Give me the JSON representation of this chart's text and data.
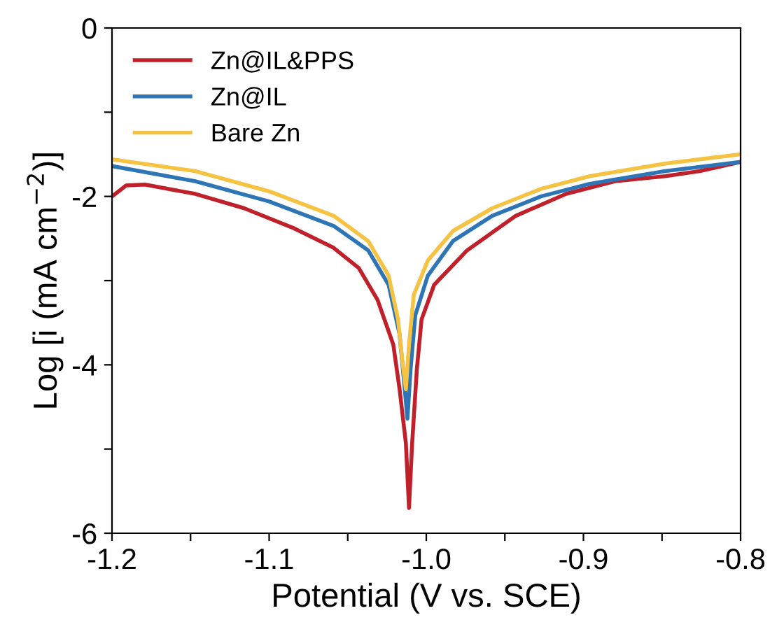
{
  "chart_data": {
    "type": "line",
    "xlabel": "Potential (V vs. SCE)",
    "ylabel": "Log [i (mA cm$^{−2}$)]",
    "xlim": [
      -1.2,
      -0.8
    ],
    "ylim": [
      -6,
      0
    ],
    "xticks": [
      {
        "value": -1.2,
        "label": "-1.2"
      },
      {
        "value": -1.15,
        "label": null
      },
      {
        "value": -1.1,
        "label": "-1.1"
      },
      {
        "value": -1.05,
        "label": null
      },
      {
        "value": -1.0,
        "label": "-1.0"
      },
      {
        "value": -0.95,
        "label": null
      },
      {
        "value": -0.9,
        "label": "-0.9"
      },
      {
        "value": -0.85,
        "label": null
      },
      {
        "value": -0.8,
        "label": "-0.8"
      }
    ],
    "yticks": [
      {
        "value": -6,
        "label": "-6"
      },
      {
        "value": -5,
        "label": null
      },
      {
        "value": -4,
        "label": "-4"
      },
      {
        "value": -3,
        "label": null
      },
      {
        "value": -2,
        "label": "-2"
      },
      {
        "value": -1,
        "label": null
      },
      {
        "value": 0,
        "label": "0"
      }
    ],
    "grid": false,
    "legend": "top left",
    "line_style": "solid",
    "marker": "none",
    "series": [
      {
        "name": "Zn@IL&PPS",
        "color": "#c0202a",
        "x": [
          -1.2,
          -1.191,
          -1.179,
          -1.147,
          -1.116,
          -1.084,
          -1.059,
          -1.043,
          -1.031,
          -1.021,
          -1.017,
          -1.013,
          -1.011,
          -1.009,
          -1.006,
          -1.003,
          -0.995,
          -0.974,
          -0.943,
          -0.911,
          -0.88,
          -0.848,
          -0.826,
          -0.8
        ],
        "values": [
          -2.0,
          -1.87,
          -1.86,
          -1.97,
          -2.14,
          -2.38,
          -2.61,
          -2.85,
          -3.23,
          -3.76,
          -4.29,
          -4.93,
          -5.7,
          -4.93,
          -4.05,
          -3.46,
          -3.05,
          -2.64,
          -2.23,
          -1.97,
          -1.82,
          -1.76,
          -1.7,
          -1.59
        ]
      },
      {
        "name": "Zn@IL",
        "color": "#2e75b6",
        "x": [
          -1.2,
          -1.147,
          -1.1,
          -1.059,
          -1.037,
          -1.024,
          -1.017,
          -1.014,
          -1.012,
          -1.01,
          -1.007,
          -0.999,
          -0.983,
          -0.958,
          -0.927,
          -0.896,
          -0.848,
          -0.8
        ],
        "values": [
          -1.64,
          -1.82,
          -2.06,
          -2.35,
          -2.64,
          -3.05,
          -3.64,
          -4.23,
          -4.64,
          -4.05,
          -3.41,
          -2.94,
          -2.53,
          -2.23,
          -2.0,
          -1.85,
          -1.7,
          -1.59
        ]
      },
      {
        "name": "Bare Zn",
        "color": "#f5c242",
        "x": [
          -1.2,
          -1.147,
          -1.1,
          -1.059,
          -1.037,
          -1.024,
          -1.018,
          -1.015,
          -1.013,
          -1.011,
          -1.008,
          -0.999,
          -0.983,
          -0.958,
          -0.927,
          -0.896,
          -0.848,
          -0.8
        ],
        "values": [
          -1.56,
          -1.7,
          -1.94,
          -2.23,
          -2.53,
          -2.94,
          -3.46,
          -3.99,
          -4.29,
          -3.76,
          -3.17,
          -2.76,
          -2.41,
          -2.14,
          -1.91,
          -1.76,
          -1.61,
          -1.5
        ]
      }
    ]
  }
}
